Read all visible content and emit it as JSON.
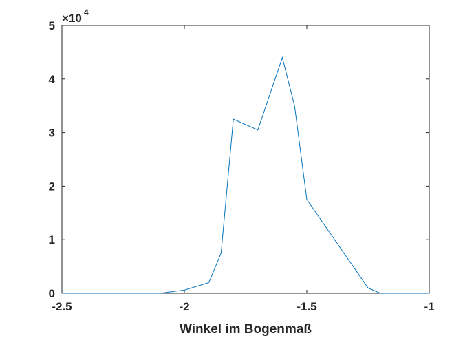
{
  "chart_data": {
    "type": "line",
    "title": "",
    "xlabel": "Winkel im Bogenmaß",
    "ylabel": "",
    "xlim": [
      -2.5,
      -1
    ],
    "ylim": [
      0,
      5
    ],
    "y_exponent_base": "×10",
    "y_exponent_power": "4",
    "xticks": [
      "-2.5",
      "-2",
      "-1.5",
      "-1"
    ],
    "xtick_values": [
      -2.5,
      -2,
      -1.5,
      -1
    ],
    "yticks": [
      "0",
      "1",
      "2",
      "3",
      "4",
      "5"
    ],
    "ytick_values": [
      0,
      1,
      2,
      3,
      4,
      5
    ],
    "grid": false,
    "series": [
      {
        "color": "#0072BD",
        "x": [
          -2.5,
          -2.1,
          -2.0,
          -1.9,
          -1.85,
          -1.8,
          -1.7,
          -1.6,
          -1.55,
          -1.5,
          -1.25,
          -1.2,
          -1.0
        ],
        "y": [
          0,
          0,
          0.06,
          0.2,
          0.75,
          3.25,
          3.05,
          4.4,
          3.5,
          1.75,
          0.1,
          0,
          0
        ]
      }
    ]
  }
}
